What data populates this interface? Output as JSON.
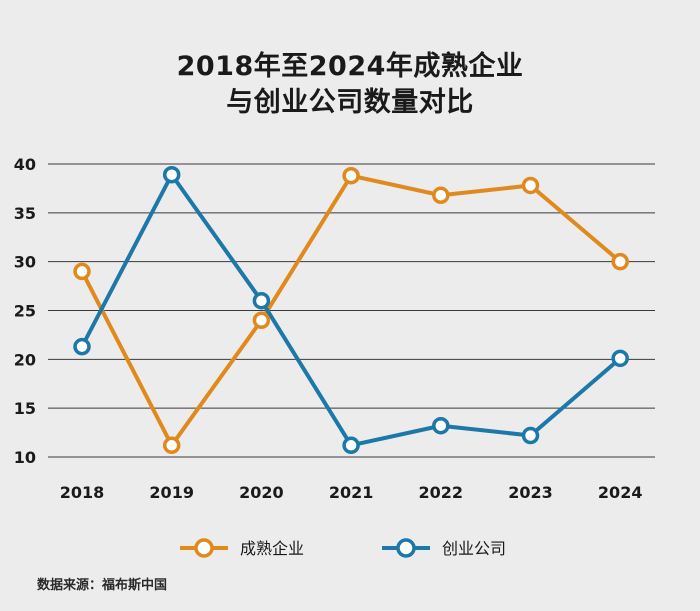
{
  "chart_data": {
    "type": "line",
    "title": [
      "2018年至2024年成熟企业",
      "与创业公司数量对比"
    ],
    "categories": [
      "2018",
      "2019",
      "2020",
      "2021",
      "2022",
      "2023",
      "2024"
    ],
    "yticks": [
      10,
      15,
      20,
      25,
      30,
      35,
      40
    ],
    "ylim": [
      10,
      40
    ],
    "grid": true,
    "series": [
      {
        "name": "成熟企业",
        "color": "#e08a1e",
        "values": [
          29,
          11.2,
          24,
          38.8,
          36.8,
          37.8,
          30
        ]
      },
      {
        "name": "创业公司",
        "color": "#1c78a8",
        "values": [
          21.3,
          38.9,
          26,
          11.2,
          13.2,
          12.2,
          20.1
        ]
      }
    ],
    "legend_position": "bottom"
  },
  "source": "数据来源：福布斯中国"
}
